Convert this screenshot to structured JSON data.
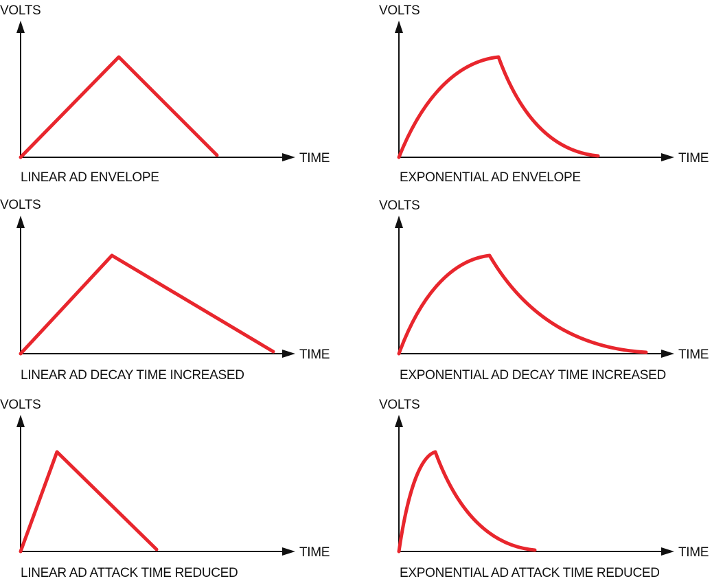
{
  "style": {
    "axis_color": "#111111",
    "curve_color": "#e8262d",
    "background": "#ffffff"
  },
  "panels": [
    {
      "caption": "LINEAR AD ENVELOPE",
      "y_label": "VOLTS",
      "x_label": "TIME",
      "shape": "linear",
      "attack": 143,
      "decay": 143
    },
    {
      "caption": "EXPONENTIAL AD ENVELOPE",
      "y_label": "VOLTS",
      "x_label": "TIME",
      "shape": "exponential",
      "attack": 145,
      "decay": 145
    },
    {
      "caption": "LINEAR AD DECAY TIME INCREASED",
      "y_label": "VOLTS",
      "x_label": "TIME",
      "shape": "linear",
      "attack": 133,
      "decay": 235
    },
    {
      "caption": "EXPONENTIAL AD DECAY TIME INCREASED",
      "y_label": "VOLTS",
      "x_label": "TIME",
      "shape": "exponential",
      "attack": 132,
      "decay": 228
    },
    {
      "caption": "LINEAR AD ATTACK TIME REDUCED",
      "y_label": "VOLTS",
      "x_label": "TIME",
      "shape": "linear",
      "attack": 53,
      "decay": 145
    },
    {
      "caption": "EXPONENTIAL AD ATTACK TIME REDUCED",
      "y_label": "VOLTS",
      "x_label": "TIME",
      "shape": "exponential",
      "attack": 53,
      "decay": 145
    }
  ]
}
